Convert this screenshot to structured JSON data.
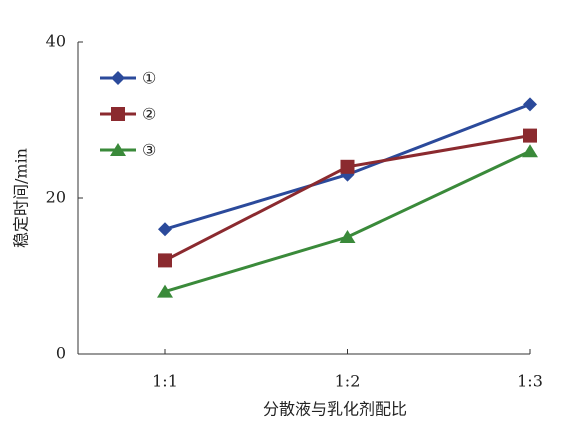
{
  "chart_data": {
    "type": "line",
    "x_label": "分散液与乳化剂配比",
    "y_label": "稳定时间/min",
    "categories": [
      "1:1",
      "1:2",
      "1:3"
    ],
    "series": [
      {
        "name": "①",
        "color": "#2b4a9b",
        "marker": "diamond",
        "values": [
          16,
          23,
          32
        ]
      },
      {
        "name": "②",
        "color": "#8b2a2f",
        "marker": "square",
        "values": [
          12,
          24,
          28
        ]
      },
      {
        "name": "③",
        "color": "#3a8a3a",
        "marker": "triangle",
        "values": [
          8,
          15,
          26
        ]
      }
    ],
    "ylim": [
      0,
      40
    ],
    "yticks": [
      0,
      20,
      40
    ],
    "legend": "upper-left"
  }
}
